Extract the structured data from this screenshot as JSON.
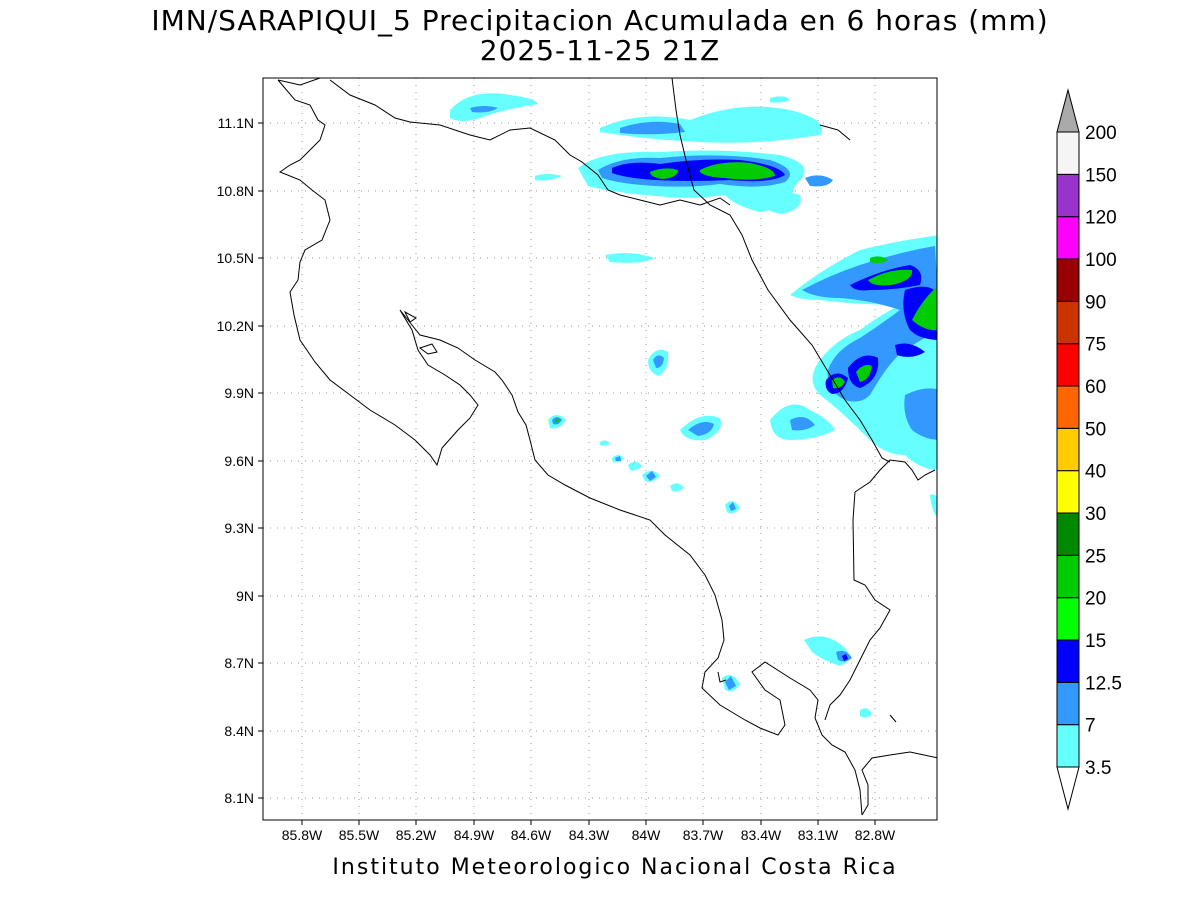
{
  "title": {
    "line1": "IMN/SARAPIQUI_5 Precipitacion Acumulada en 6 horas (mm)",
    "line2": "2025-11-25 21Z"
  },
  "footer": "Instituto Meteorologico Nacional Costa Rica",
  "map": {
    "lon_range": [
      -86.0,
      -82.5
    ],
    "lat_range": [
      8.0,
      11.3
    ],
    "lon_ticks": [
      "85.8W",
      "85.5W",
      "85.2W",
      "84.9W",
      "84.6W",
      "84.3W",
      "84W",
      "83.7W",
      "83.4W",
      "83.1W",
      "82.8W"
    ],
    "lat_ticks": [
      "11.1N",
      "10.8N",
      "10.5N",
      "10.2N",
      "9.9N",
      "9.6N",
      "9.3N",
      "9N",
      "8.7N",
      "8.4N",
      "8.1N"
    ],
    "grid": "dotted"
  },
  "colorbar": {
    "levels": [
      {
        "label": "3.5",
        "color": "#66ffff"
      },
      {
        "label": "7",
        "color": "#3399ff"
      },
      {
        "label": "12.5",
        "color": "#0000ff"
      },
      {
        "label": "15",
        "color": "#00ff00"
      },
      {
        "label": "20",
        "color": "#00cc00"
      },
      {
        "label": "25",
        "color": "#008800"
      },
      {
        "label": "30",
        "color": "#ffff00"
      },
      {
        "label": "40",
        "color": "#ffcc00"
      },
      {
        "label": "50",
        "color": "#ff6600"
      },
      {
        "label": "60",
        "color": "#ff0000"
      },
      {
        "label": "75",
        "color": "#cc3300"
      },
      {
        "label": "90",
        "color": "#990000"
      },
      {
        "label": "100",
        "color": "#ff00ff"
      },
      {
        "label": "120",
        "color": "#9933cc"
      },
      {
        "label": "150",
        "color": "#f5f5f5"
      },
      {
        "label": "200",
        "color": "#aaaaaa"
      }
    ]
  },
  "colors": {
    "c35": "#66ffff",
    "c7": "#3399ff",
    "c125": "#0000ff",
    "c15": "#00ff00",
    "c20": "#00cc00",
    "c25": "#008800"
  }
}
